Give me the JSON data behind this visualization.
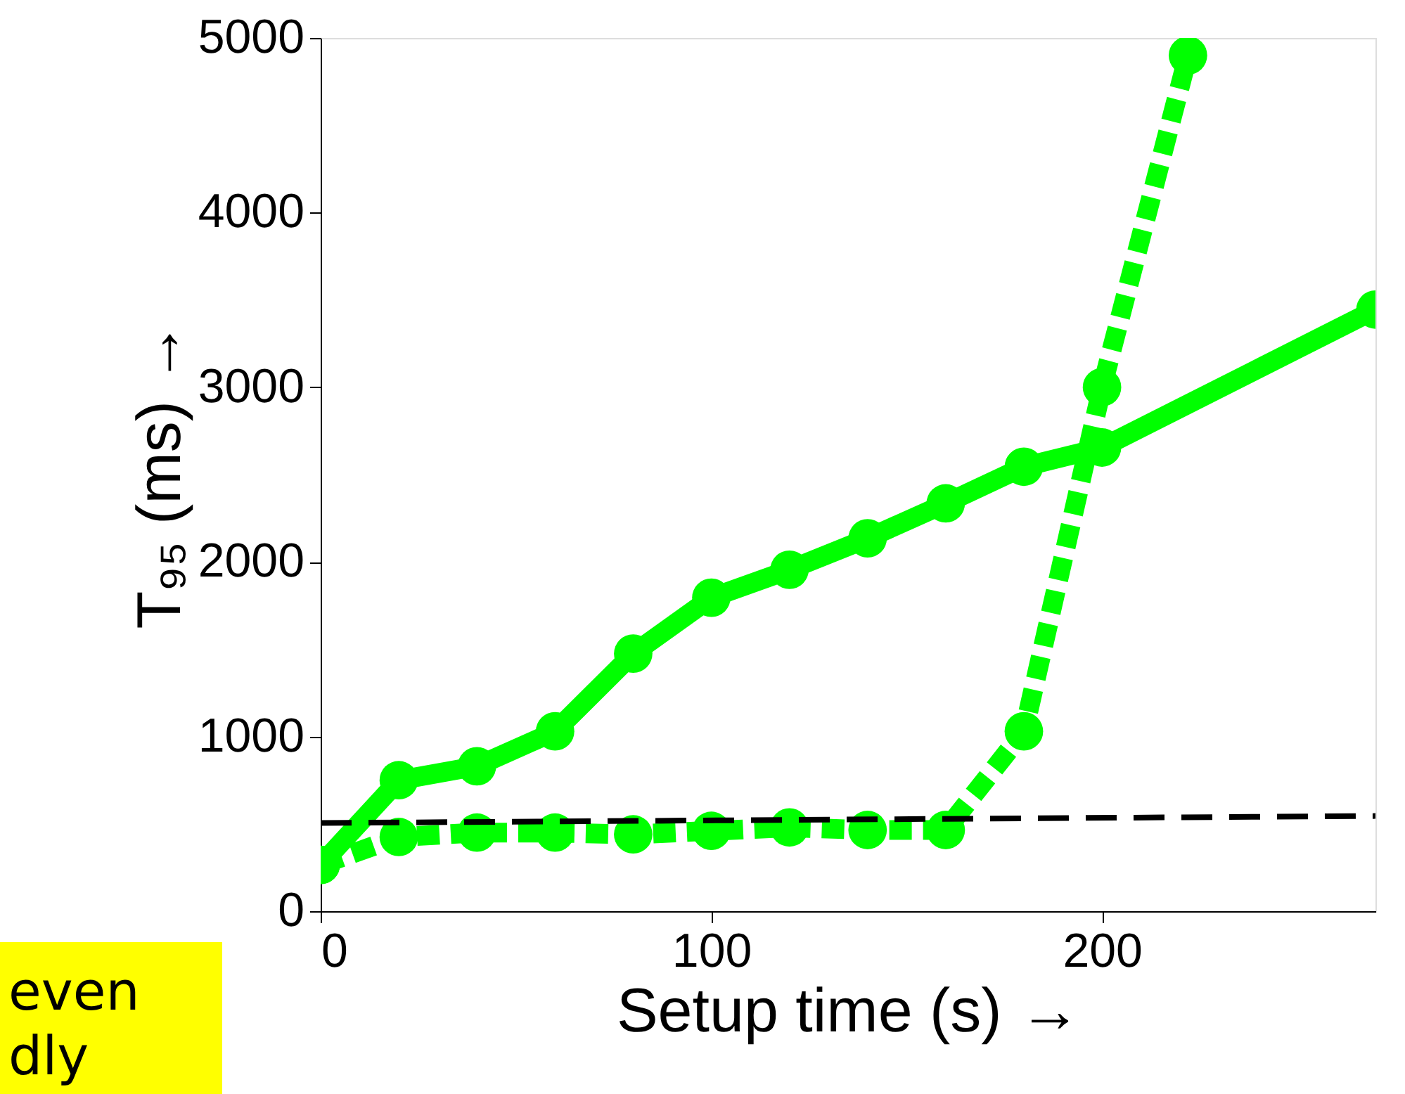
{
  "chart_data": {
    "type": "line",
    "xlabel": "Setup time (s) →",
    "ylabel": "T₉₅ (ms) →",
    "xlim": [
      0,
      270
    ],
    "ylim": [
      0,
      5000
    ],
    "xticks": [
      0,
      100,
      200
    ],
    "yticks": [
      0,
      1000,
      2000,
      3000,
      4000,
      5000
    ],
    "grid": false,
    "series": [
      {
        "color": "#00ff00",
        "line_style": "solid",
        "marker": "circle",
        "x": [
          0,
          20,
          40,
          60,
          80,
          100,
          120,
          140,
          160,
          180,
          200,
          270
        ],
        "values": [
          265,
          750,
          830,
          1030,
          1475,
          1795,
          1955,
          2135,
          2335,
          2545,
          2655,
          3445
        ]
      },
      {
        "color": "#00ff00",
        "line_style": "dashed",
        "marker": "circle",
        "x": [
          0,
          20,
          40,
          60,
          80,
          100,
          120,
          140,
          160,
          180,
          200,
          222
        ],
        "values": [
          265,
          425,
          450,
          450,
          440,
          460,
          480,
          465,
          465,
          1030,
          3000,
          4900
        ]
      },
      {
        "color": "#000000",
        "line_style": "dashed",
        "marker": "none",
        "x": [
          0,
          270
        ],
        "values": [
          505,
          545
        ]
      }
    ],
    "annotations": [
      "even",
      "dly"
    ]
  }
}
